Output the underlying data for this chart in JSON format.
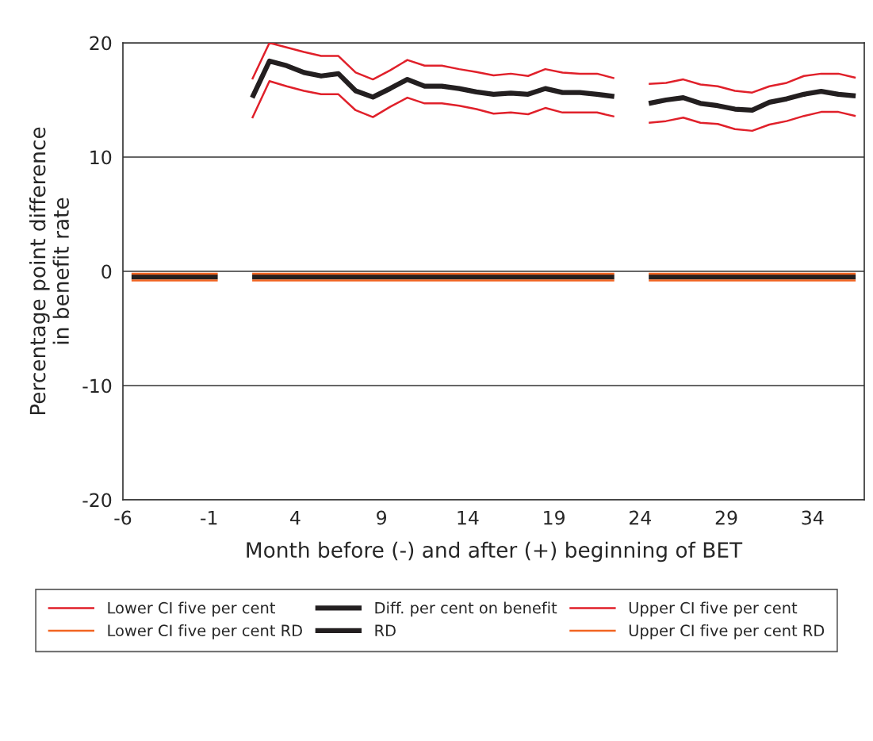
{
  "chart_data": {
    "type": "line",
    "ylabel": "Percentage point difference\nin benefit rate",
    "xlabel": "Month before (-) and after (+) beginning of BET",
    "x": [
      -5.5,
      -4.5,
      -3.5,
      -2.5,
      -1.5,
      -0.5,
      0.5,
      1.5,
      2.5,
      3.5,
      4.5,
      5.5,
      6.5,
      7.5,
      8.5,
      9.5,
      10.5,
      11.5,
      12.5,
      13.5,
      14.5,
      15.5,
      16.5,
      17.5,
      18.5,
      19.5,
      20.5,
      21.5,
      22.5,
      23.5,
      24.5,
      25.5,
      26.5,
      27.5,
      28.5,
      29.5,
      30.5,
      31.5,
      32.5,
      33.5,
      34.5,
      35.5,
      36.5
    ],
    "series": [
      {
        "name": "Lower CI five per cent",
        "color": "#e0202a",
        "values": [
          null,
          null,
          null,
          null,
          null,
          null,
          null,
          13.4,
          16.65,
          16.2,
          15.8,
          15.5,
          15.5,
          14.1,
          13.5,
          14.4,
          15.2,
          14.7,
          14.7,
          14.5,
          14.2,
          13.8,
          13.9,
          13.75,
          14.3,
          13.9,
          13.9,
          13.9,
          13.55,
          null,
          13.0,
          13.15,
          13.45,
          13.0,
          12.9,
          12.45,
          12.3,
          12.85,
          13.15,
          13.6,
          13.95,
          13.95,
          13.6
        ]
      },
      {
        "name": "Lower CI five per cent RD",
        "color": "#f26522",
        "values": [
          -0.8,
          -0.8,
          -0.8,
          -0.8,
          -0.8,
          -0.8,
          null,
          -0.8,
          -0.8,
          -0.8,
          -0.8,
          -0.8,
          -0.8,
          -0.8,
          -0.8,
          -0.8,
          -0.8,
          -0.8,
          -0.8,
          -0.8,
          -0.8,
          -0.8,
          -0.8,
          -0.8,
          -0.8,
          -0.8,
          -0.8,
          -0.8,
          -0.8,
          null,
          -0.8,
          -0.8,
          -0.8,
          -0.8,
          -0.8,
          -0.8,
          -0.8,
          -0.8,
          -0.8,
          -0.8,
          -0.8,
          -0.8,
          -0.8
        ]
      },
      {
        "name": "Diff. per cent on benefit",
        "color": "#231f20",
        "values": [
          null,
          null,
          null,
          null,
          null,
          null,
          null,
          15.2,
          18.4,
          18.0,
          17.4,
          17.1,
          17.3,
          15.8,
          15.25,
          16.0,
          16.8,
          16.2,
          16.2,
          16.0,
          15.7,
          15.5,
          15.6,
          15.5,
          16.0,
          15.65,
          15.65,
          15.5,
          15.3,
          null,
          14.7,
          15.0,
          15.2,
          14.7,
          14.5,
          14.2,
          14.1,
          14.8,
          15.1,
          15.5,
          15.75,
          15.5,
          15.35
        ]
      },
      {
        "name": "RD",
        "color": "#231f20",
        "values": [
          -0.5,
          -0.5,
          -0.5,
          -0.5,
          -0.5,
          -0.5,
          null,
          -0.5,
          -0.5,
          -0.5,
          -0.5,
          -0.5,
          -0.5,
          -0.5,
          -0.5,
          -0.5,
          -0.5,
          -0.5,
          -0.5,
          -0.5,
          -0.5,
          -0.5,
          -0.5,
          -0.5,
          -0.5,
          -0.5,
          -0.5,
          -0.5,
          -0.5,
          null,
          -0.5,
          -0.5,
          -0.5,
          -0.5,
          -0.5,
          -0.5,
          -0.5,
          -0.5,
          -0.5,
          -0.5,
          -0.5,
          -0.5,
          -0.5
        ]
      },
      {
        "name": "Upper CI five per cent",
        "color": "#e0202a",
        "values": [
          null,
          null,
          null,
          null,
          null,
          null,
          null,
          16.8,
          20.0,
          19.6,
          19.2,
          18.85,
          18.85,
          17.4,
          16.8,
          17.6,
          18.5,
          18.0,
          18.0,
          17.7,
          17.45,
          17.15,
          17.3,
          17.1,
          17.7,
          17.4,
          17.3,
          17.3,
          16.9,
          null,
          16.4,
          16.5,
          16.8,
          16.35,
          16.2,
          15.8,
          15.65,
          16.2,
          16.5,
          17.1,
          17.3,
          17.3,
          16.95
        ]
      },
      {
        "name": "Upper CI five per cent RD",
        "color": "#f26522",
        "values": [
          -0.2,
          -0.2,
          -0.2,
          -0.2,
          -0.2,
          -0.2,
          null,
          -0.2,
          -0.2,
          -0.2,
          -0.2,
          -0.2,
          -0.2,
          -0.2,
          -0.2,
          -0.2,
          -0.2,
          -0.2,
          -0.2,
          -0.2,
          -0.2,
          -0.2,
          -0.2,
          -0.2,
          -0.2,
          -0.2,
          -0.2,
          -0.2,
          -0.2,
          null,
          -0.2,
          -0.2,
          -0.2,
          -0.2,
          -0.2,
          -0.2,
          -0.2,
          -0.2,
          -0.2,
          -0.2,
          -0.2,
          -0.2,
          -0.2
        ]
      }
    ],
    "xlim": [
      -6,
      37
    ],
    "xticks": [
      -6,
      -1,
      4,
      9,
      14,
      19,
      24,
      29,
      34
    ],
    "ylim": [
      -20,
      20
    ],
    "yticks": [
      -20,
      -10,
      0,
      10,
      20
    ],
    "grid": "y",
    "legend": "bottom",
    "marker": "none",
    "line_style": "solid"
  }
}
